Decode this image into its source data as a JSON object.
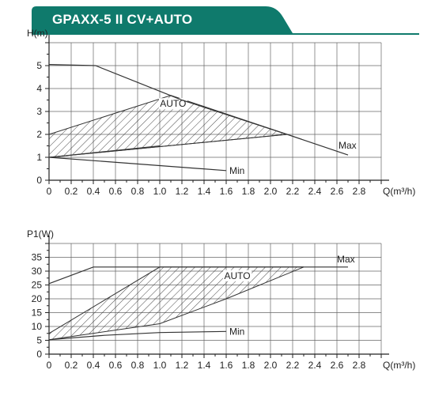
{
  "header": {
    "title": "GPAXX-5 II CV+AUTO",
    "color": "#0f7a6c"
  },
  "chart_data": [
    {
      "type": "line",
      "ylabel": "H(m)",
      "xlabel": "Q(m³/h)",
      "xlim": [
        0,
        3.0
      ],
      "ylim": [
        0,
        6
      ],
      "xticks": [
        "0",
        "0.2",
        "0.4",
        "0.6",
        "0.8",
        "1.0",
        "1.2",
        "1.4",
        "1.6",
        "1.8",
        "2.0",
        "2.2",
        "2.4",
        "2.6",
        "2.8"
      ],
      "yticks": [
        "0",
        "1",
        "2",
        "3",
        "4",
        "5"
      ],
      "grid": true,
      "series": [
        {
          "name": "Max",
          "points": [
            [
              0,
              5.05
            ],
            [
              0.42,
              5.0
            ],
            [
              1.2,
              3.5
            ],
            [
              2.15,
              2.0
            ],
            [
              2.7,
              1.1
            ]
          ]
        },
        {
          "name": "Min",
          "points": [
            [
              0,
              1.0
            ],
            [
              1.6,
              0.42
            ]
          ]
        }
      ],
      "hatched_region": {
        "name": "AUTO",
        "polygon": [
          [
            0,
            1.0
          ],
          [
            0,
            2.0
          ],
          [
            1.1,
            3.7
          ],
          [
            2.15,
            2.0
          ]
        ]
      },
      "region_lines": [
        [
          [
            0,
            1.0
          ],
          [
            2.15,
            2.0
          ]
        ],
        [
          [
            0,
            1.0
          ],
          [
            1.0,
            1.5
          ]
        ]
      ]
    },
    {
      "type": "line",
      "ylabel": "P1(W)",
      "xlabel": "Q(m³/h)",
      "xlim": [
        0,
        3.0
      ],
      "ylim": [
        0,
        40
      ],
      "xticks": [
        "0",
        "0.2",
        "0.4",
        "0.6",
        "0.8",
        "1.0",
        "1.2",
        "1.4",
        "1.6",
        "1.8",
        "2.0",
        "2.2",
        "2.4",
        "2.6",
        "2.8"
      ],
      "yticks": [
        "0",
        "5",
        "10",
        "15",
        "20",
        "25",
        "30",
        "35"
      ],
      "grid": true,
      "series": [
        {
          "name": "Max",
          "points": [
            [
              0,
              25.5
            ],
            [
              0.4,
              31.5
            ],
            [
              2.7,
              31.5
            ]
          ]
        },
        {
          "name": "Min",
          "points": [
            [
              0,
              5.2
            ],
            [
              0.5,
              6.8
            ],
            [
              1.0,
              7.8
            ],
            [
              1.6,
              8.2
            ]
          ]
        }
      ],
      "hatched_region": {
        "name": "AUTO",
        "polygon": [
          [
            0,
            5.2
          ],
          [
            0,
            7.5
          ],
          [
            1.0,
            31.5
          ],
          [
            2.3,
            31.5
          ],
          [
            1.6,
            20.0
          ],
          [
            1.0,
            11.0
          ]
        ]
      },
      "region_lines": []
    }
  ]
}
